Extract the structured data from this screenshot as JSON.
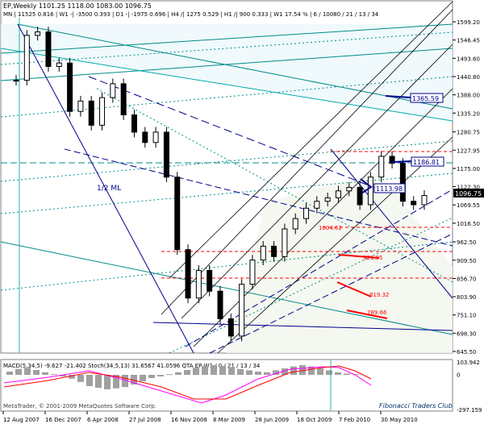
{
  "header": {
    "symbol_line": "EP,Weekly  1101.25 1118.00 1083.00 1096.75",
    "info_line": "MN | 11525  0.816  | W1 -| -3500  0.393  | D1 -| -1975  0.696  | H4 /| 1275  0.529  | H1 /| 900  0.333  | W1  17.54 %  | 6 / 10080 / 21 / 13 / 34"
  },
  "chart_data": [
    {
      "type": "line",
      "title": "EP,Weekly",
      "subtitle": "1101.25 1118.00 1083.00 1096.75",
      "xlabel": "",
      "ylabel": "",
      "ylim": [
        645.5,
        1625
      ],
      "x_tick_labels": [
        "12 Aug 2007",
        "16 Dec 2007",
        "6 Apr 2008",
        "27 Jul 2008",
        "16 Nov 2008",
        "8 Mar 2009",
        "28 Jun 2009",
        "18 Oct 2009",
        "7 Feb 2010",
        "30 May 2010"
      ],
      "y_tick_labels": [
        1599.2,
        1546.45,
        1493.6,
        1440.8,
        1388.0,
        1335.2,
        1280.75,
        1227.95,
        1175.0,
        1122.3,
        1069.55,
        1016.5,
        962.5,
        909.5,
        856.7,
        803.9,
        751.1,
        698.3,
        645.5
      ],
      "series": [
        {
          "x": [
            "12 Aug 2007",
            "16 Sep 2007",
            "14 Oct 2007",
            "11 Nov 2007",
            "16 Dec 2007",
            "20 Jan 2008",
            "24 Feb 2008",
            "16 Mar 2008",
            "6 Apr 2008",
            "4 May 2008",
            "1 Jun 2008",
            "29 Jun 2008",
            "27 Jul 2008",
            "24 Aug 2008",
            "21 Sep 2008",
            "19 Oct 2008",
            "16 Nov 2008",
            "21 Dec 2008",
            "18 Jan 2009",
            "15 Feb 2009",
            "8 Mar 2009",
            "5 Apr 2009",
            "3 May 2009",
            "31 May 2009",
            "28 Jun 2009",
            "26 Jul 2009",
            "23 Aug 2009",
            "20 Sep 2009",
            "18 Oct 2009",
            "15 Nov 2009",
            "13 Dec 2009",
            "10 Jan 2010",
            "7 Feb 2010",
            "7 Mar 2010",
            "4 Apr 2010",
            "25 Apr 2010",
            "16 May 2010",
            "30 May 2010",
            "13 Jun 2010"
          ],
          "values": [
            1430,
            1560,
            1570,
            1470,
            1480,
            1340,
            1370,
            1300,
            1380,
            1420,
            1330,
            1280,
            1250,
            1280,
            1150,
            940,
            800,
            880,
            820,
            740,
            690,
            840,
            910,
            950,
            920,
            1000,
            1030,
            1060,
            1080,
            1090,
            1110,
            1120,
            1070,
            1150,
            1210,
            1190,
            1080,
            1070,
            1096.75
          ]
        }
      ],
      "annotations": [
        "1365.59",
        "1186.81",
        "1113.98",
        "1096.75",
        "1004.62",
        "921.95",
        "819.32",
        "789.66",
        "1/2 ML",
        "Fibonacci Traders Club"
      ],
      "grid": false,
      "legend": "none"
    },
    {
      "type": "line",
      "title": "MACD(5,34,5) -9.627 -21.402  Stoch(34,5,13) 31.6567 41.0596  QTA EP W1 / 0 / 21 / 13 / 34",
      "ylim": [
        -297.159,
        103.942
      ],
      "y_tick_labels": [
        103.942,
        0,
        -297.159
      ],
      "x_tick_labels": [
        "12 Aug 2007",
        "16 Dec 2007",
        "6 Apr 2008",
        "27 Jul 2008",
        "16 Nov 2008",
        "8 Mar 2009",
        "28 Jun 2009",
        "18 Oct 2009",
        "7 Feb 2010",
        "30 May 2010"
      ],
      "grid": false,
      "legend": "none"
    }
  ],
  "footer": {
    "copyright": "MetaTrader, © 2001-2009 MetaQuotes Software Corp.",
    "watermark": "Fibonacci Traders Club"
  },
  "colors": {
    "background": "#ffffff",
    "candle": "#000000",
    "pitchfork": "#000080",
    "fib_lines": "#008080",
    "red_lines": "#ff0000",
    "stoch": "#ff00ff",
    "macd_hist": "#a0a0a0"
  }
}
